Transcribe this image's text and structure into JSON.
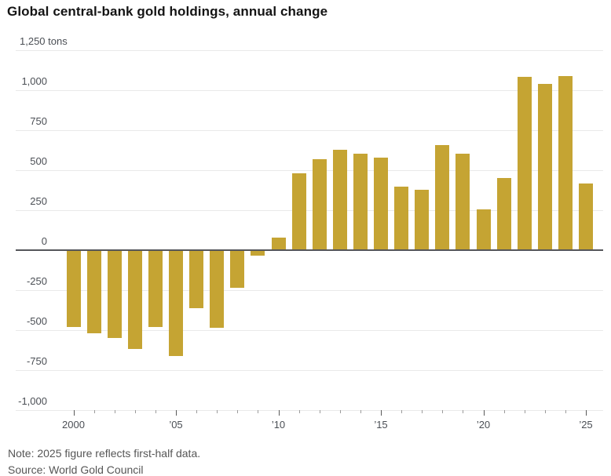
{
  "title": "Global central-bank gold holdings, annual change",
  "note": "Note: 2025 figure reflects first-half data.",
  "source": "Source: World Gold Council",
  "colors": {
    "bar": "#C5A433",
    "grid": "#E9E9E9",
    "zero_line": "#55565A",
    "axis_text": "#4B4F55",
    "title_text": "#141414",
    "note_text": "#565656",
    "tick_major": "#5A5A5A",
    "tick_minor": "#9B9B9B",
    "background": "#FFFFFF"
  },
  "chart_data": {
    "type": "bar",
    "title": "Global central-bank gold holdings, annual change",
    "unit": "tons",
    "x": [
      2000,
      2001,
      2002,
      2003,
      2004,
      2005,
      2006,
      2007,
      2008,
      2009,
      2010,
      2011,
      2012,
      2013,
      2014,
      2015,
      2016,
      2017,
      2018,
      2019,
      2020,
      2021,
      2022,
      2023,
      2024,
      2025
    ],
    "values": [
      -479,
      -520,
      -547,
      -617,
      -479,
      -663,
      -365,
      -484,
      -235,
      -34,
      77,
      481,
      569,
      629,
      601,
      580,
      395,
      379,
      656,
      605,
      255,
      450,
      1082,
      1037,
      1086,
      415
    ],
    "ylim": [
      -1000,
      1250
    ],
    "ytick_interval": 250,
    "grid": true,
    "legend": false,
    "yticks": [
      {
        "value": 1250,
        "label": "1,250 tons",
        "tons": true
      },
      {
        "value": 1000,
        "label": "1,000"
      },
      {
        "value": 750,
        "label": "750"
      },
      {
        "value": 500,
        "label": "500"
      },
      {
        "value": 250,
        "label": "250"
      },
      {
        "value": 0,
        "label": "0"
      },
      {
        "value": -250,
        "label": "-250"
      },
      {
        "value": -500,
        "label": "-500"
      },
      {
        "value": -750,
        "label": "-750"
      },
      {
        "value": -1000,
        "label": "-1,000"
      }
    ],
    "xticks": [
      {
        "year": 2000,
        "label": "2000"
      },
      {
        "year": 2005,
        "label": "’05"
      },
      {
        "year": 2010,
        "label": "’10"
      },
      {
        "year": 2015,
        "label": "’15"
      },
      {
        "year": 2020,
        "label": "’20"
      },
      {
        "year": 2025,
        "label": "’25"
      }
    ]
  }
}
